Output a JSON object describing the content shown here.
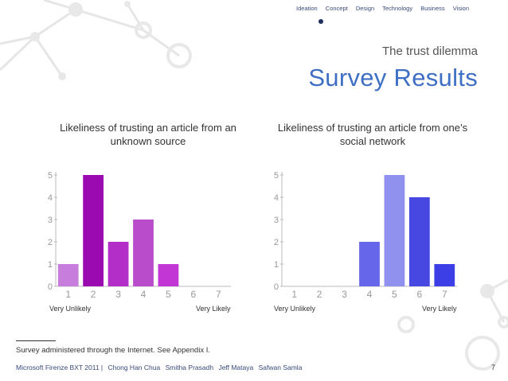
{
  "nav": {
    "items": [
      "Ideation",
      "Concept",
      "Design",
      "Technology",
      "Business",
      "Vision"
    ]
  },
  "header": {
    "subtitle": "The trust dilemma",
    "title": "Survey Results"
  },
  "chart_data": [
    {
      "type": "bar",
      "title": "Likeliness of trusting an article from an unknown source",
      "categories": [
        "1",
        "2",
        "3",
        "4",
        "5",
        "6",
        "7"
      ],
      "values": [
        1,
        5,
        2,
        3,
        1,
        0,
        0
      ],
      "colors": [
        "#c77ddc",
        "#9b09b0",
        "#b32dc8",
        "#b84cca",
        "#c236d6",
        "#ffffff",
        "#ffffff"
      ],
      "ylim": [
        0,
        5
      ],
      "yticks": [
        "0",
        "1",
        "2",
        "3",
        "4",
        "5"
      ],
      "xlabel_left": "Very Unlikely",
      "xlabel_right": "Very Likely",
      "grid": false
    },
    {
      "type": "bar",
      "title": "Likeliness of trusting an article from one’s social network",
      "categories": [
        "1",
        "2",
        "3",
        "4",
        "5",
        "6",
        "7"
      ],
      "values": [
        0,
        0,
        0,
        2,
        5,
        4,
        1
      ],
      "colors": [
        "#ffffff",
        "#ffffff",
        "#ffffff",
        "#6666ea",
        "#9090ee",
        "#4747e2",
        "#3c3fe6"
      ],
      "ylim": [
        0,
        5
      ],
      "yticks": [
        "0",
        "1",
        "2",
        "3",
        "4",
        "5"
      ],
      "xlabel_left": "Very Unlikely",
      "xlabel_right": "Very Likely",
      "grid": false
    }
  ],
  "footnote": "Survey administered through the Internet. See Appendix I.",
  "footer": {
    "event": "Microsoft Firenze BXT 2011 |",
    "authors": [
      "Chong Han Chua",
      "Smitha Prasadh",
      "Jeff Mataya",
      "Safwan Samla"
    ]
  },
  "page_number": "7"
}
